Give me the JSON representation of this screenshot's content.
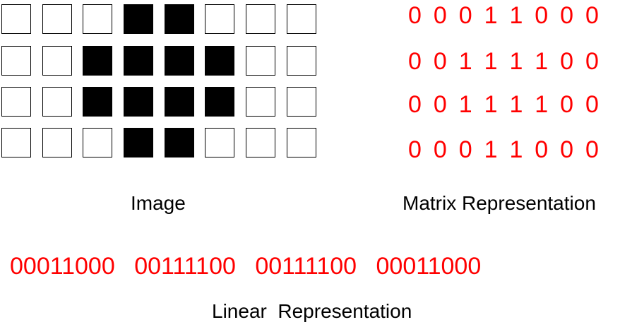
{
  "image_caption": "Image",
  "matrix_caption": "Matrix Representation",
  "linear_caption": "Linear  Representation",
  "pixel_color_on": "#000000",
  "pixel_color_off": "#ffffff",
  "digit_color": "#ff0000",
  "matrix": [
    [
      0,
      0,
      0,
      1,
      1,
      0,
      0,
      0
    ],
    [
      0,
      0,
      1,
      1,
      1,
      1,
      0,
      0
    ],
    [
      0,
      0,
      1,
      1,
      1,
      1,
      0,
      0
    ],
    [
      0,
      0,
      0,
      1,
      1,
      0,
      0,
      0
    ]
  ],
  "linear_text": "00011000  00111100  00111100  00011000"
}
